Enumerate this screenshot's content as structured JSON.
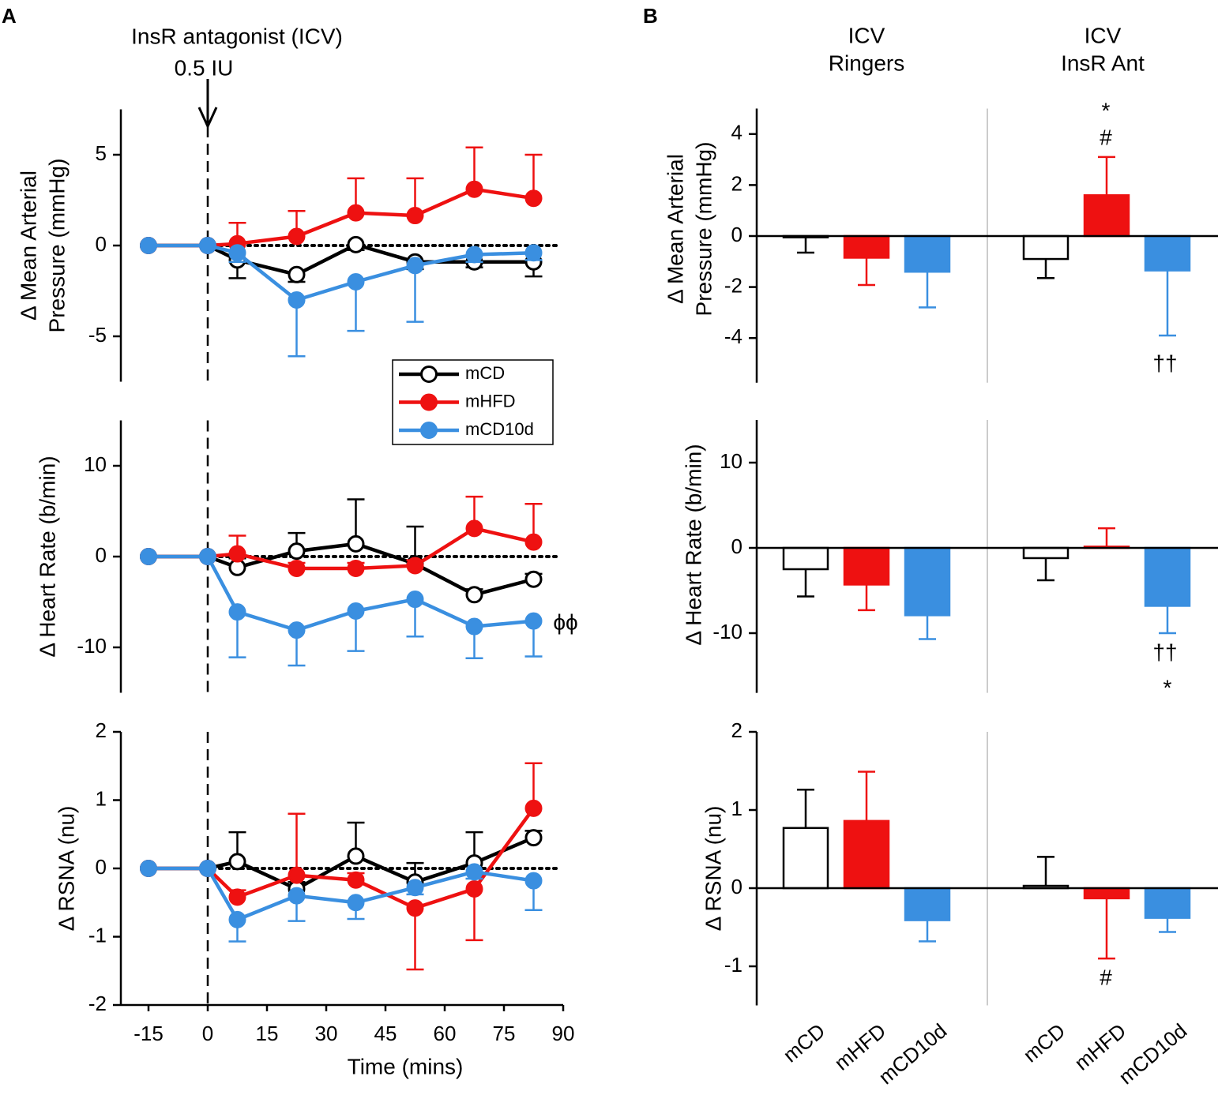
{
  "panel_labels": [
    "A",
    "B"
  ],
  "chart_data": [
    {
      "type": "line",
      "ylabel": [
        "Δ Mean Arterial",
        "Pressure (mmHg)"
      ],
      "annotations": [
        "InsR antagonist (ICV)",
        "0.5 IU"
      ],
      "legend": "lower right",
      "x": [
        -15,
        0,
        7.5,
        22.5,
        37.5,
        52.5,
        67.5,
        82.5
      ],
      "xlim": [
        -22,
        90
      ],
      "ylim": [
        -7.5,
        7.5
      ],
      "yticks": [
        5,
        0,
        -5
      ],
      "series": [
        {
          "name": "mCD",
          "color": "#000000",
          "marker_fill": "#ffffff",
          "values": [
            0,
            0,
            -0.8,
            -1.6,
            0.05,
            -0.9,
            -0.9,
            -0.9
          ],
          "errors": [
            0,
            0,
            1.0,
            0.4,
            0.3,
            0.4,
            0.3,
            0.8
          ],
          "error_side": "down"
        },
        {
          "name": "mHFD",
          "color": "#ee1111",
          "marker_fill": "#ee1111",
          "values": [
            0,
            0,
            0.1,
            0.5,
            1.8,
            1.65,
            3.1,
            2.6
          ],
          "errors": [
            0,
            0,
            1.15,
            1.4,
            1.9,
            2.05,
            2.3,
            2.4
          ],
          "error_side": "up"
        },
        {
          "name": "mCD10d",
          "color": "#3a8fe0",
          "marker_fill": "#3a8fe0",
          "values": [
            0,
            0,
            -0.4,
            -3.0,
            -2.0,
            -1.1,
            -0.5,
            -0.4
          ],
          "errors": [
            0,
            0,
            0.5,
            3.1,
            2.7,
            3.1,
            0.4,
            0.4
          ],
          "error_side": "down"
        }
      ]
    },
    {
      "type": "line",
      "ylabel": [
        "Δ Heart Rate (b/min)"
      ],
      "annotations": [
        "ϕϕ"
      ],
      "x": [
        -15,
        0,
        7.5,
        22.5,
        37.5,
        52.5,
        67.5,
        82.5
      ],
      "xlim": [
        -22,
        90
      ],
      "ylim": [
        -15,
        15
      ],
      "yticks": [
        10,
        0,
        -10
      ],
      "series": [
        {
          "name": "mCD",
          "color": "#000000",
          "marker_fill": "#ffffff",
          "values": [
            0,
            0,
            -1.2,
            0.6,
            1.4,
            -0.8,
            -4.2,
            -2.5
          ],
          "errors": [
            0,
            0,
            1.0,
            2.0,
            4.9,
            4.1,
            0.6,
            0.6
          ],
          "error_side": "up"
        },
        {
          "name": "mHFD",
          "color": "#ee1111",
          "marker_fill": "#ee1111",
          "values": [
            0,
            0,
            0.3,
            -1.3,
            -1.3,
            -1.0,
            3.1,
            1.6
          ],
          "errors": [
            0,
            0,
            2.0,
            0.6,
            0.6,
            0.6,
            3.5,
            4.2
          ],
          "error_side": "up"
        },
        {
          "name": "mCD10d",
          "color": "#3a8fe0",
          "marker_fill": "#3a8fe0",
          "values": [
            0,
            0,
            -6.1,
            -8.1,
            -6.0,
            -4.7,
            -7.7,
            -7.1
          ],
          "errors": [
            0,
            0,
            5.0,
            3.9,
            4.4,
            4.1,
            3.5,
            3.9
          ],
          "error_side": "down"
        }
      ]
    },
    {
      "type": "line",
      "ylabel": [
        "Δ RSNA (nu)"
      ],
      "xlabel": "Time (mins)",
      "x": [
        -15,
        0,
        7.5,
        22.5,
        37.5,
        52.5,
        67.5,
        82.5
      ],
      "xlim": [
        -22,
        90
      ],
      "xticks": [
        -15,
        0,
        15,
        30,
        45,
        60,
        75,
        90
      ],
      "ylim": [
        -2,
        2
      ],
      "yticks": [
        2,
        1,
        0,
        -1,
        -2
      ],
      "series": [
        {
          "name": "mCD",
          "color": "#000000",
          "marker_fill": "#ffffff",
          "values": [
            0,
            0,
            0.1,
            -0.3,
            0.18,
            -0.2,
            0.08,
            0.45
          ],
          "errors": [
            0,
            0,
            0.43,
            0.1,
            0.49,
            0.28,
            0.45,
            0.1
          ],
          "error_side": "up"
        },
        {
          "name": "mHFD",
          "color": "#ee1111",
          "marker_fill": "#ee1111",
          "values": [
            0,
            0,
            -0.42,
            -0.1,
            -0.17,
            -0.58,
            -0.3,
            0.88
          ],
          "errors": [
            0,
            0,
            0.1,
            0.9,
            0.1,
            0.9,
            0.75,
            0.66
          ],
          "error_side": [
            "up",
            "up",
            "up",
            "up",
            "up",
            "down",
            "down",
            "up"
          ]
        },
        {
          "name": "mCD10d",
          "color": "#3a8fe0",
          "marker_fill": "#3a8fe0",
          "values": [
            0,
            0,
            -0.75,
            -0.4,
            -0.5,
            -0.28,
            -0.05,
            -0.18
          ],
          "errors": [
            0,
            0,
            0.32,
            0.37,
            0.24,
            0.1,
            0.1,
            0.43
          ],
          "error_side": "down"
        }
      ]
    },
    {
      "type": "bar",
      "ylabel": [
        "Δ Mean Arterial",
        "Pressure (mmHg)"
      ],
      "annotations": [
        "*",
        "#",
        "††"
      ],
      "ylim": [
        -5.75,
        5
      ],
      "yticks": [
        4,
        2,
        0,
        -2,
        -4
      ],
      "colors": [
        "#ffffff",
        "#ee1111",
        "#3a8fe0"
      ],
      "edge_colors": [
        "#000000",
        "#ee1111",
        "#3a8fe0"
      ],
      "series": [
        {
          "name": [
            "ICV",
            "Ringers"
          ],
          "values": [
            -0.05,
            -0.85,
            -1.4
          ],
          "errors": [
            0.6,
            1.07,
            1.4
          ]
        },
        {
          "name": [
            "ICV",
            "InsR Ant"
          ],
          "values": [
            -0.9,
            1.6,
            -1.35
          ],
          "errors": [
            0.75,
            1.5,
            2.55
          ]
        }
      ]
    },
    {
      "type": "bar",
      "ylabel": [
        "Δ Heart Rate (b/min)"
      ],
      "annotations": [
        "††",
        "*"
      ],
      "ylim": [
        -17,
        15
      ],
      "yticks": [
        10,
        0,
        -10
      ],
      "colors": [
        "#ffffff",
        "#ee1111",
        "#3a8fe0"
      ],
      "edge_colors": [
        "#000000",
        "#ee1111",
        "#3a8fe0"
      ],
      "series": [
        {
          "values": [
            -2.5,
            -4.3,
            -7.9
          ],
          "errors": [
            3.2,
            3.0,
            2.8
          ]
        },
        {
          "values": [
            -1.2,
            0.15,
            -6.8
          ],
          "errors": [
            2.6,
            2.15,
            3.2
          ]
        }
      ]
    },
    {
      "type": "bar",
      "ylabel": [
        "Δ RSNA (nu)"
      ],
      "annotations": [
        "#"
      ],
      "categories": [
        "mCD",
        "mHFD",
        "mCD10d"
      ],
      "ylim": [
        -1.5,
        2
      ],
      "yticks": [
        2,
        1,
        0,
        -1
      ],
      "colors": [
        "#ffffff",
        "#ee1111",
        "#3a8fe0"
      ],
      "edge_colors": [
        "#000000",
        "#ee1111",
        "#3a8fe0"
      ],
      "series": [
        {
          "values": [
            0.77,
            0.86,
            -0.41
          ],
          "errors": [
            0.49,
            0.63,
            0.27
          ]
        },
        {
          "values": [
            0.03,
            -0.13,
            -0.38
          ],
          "errors": [
            0.37,
            0.77,
            0.18
          ]
        }
      ]
    }
  ]
}
